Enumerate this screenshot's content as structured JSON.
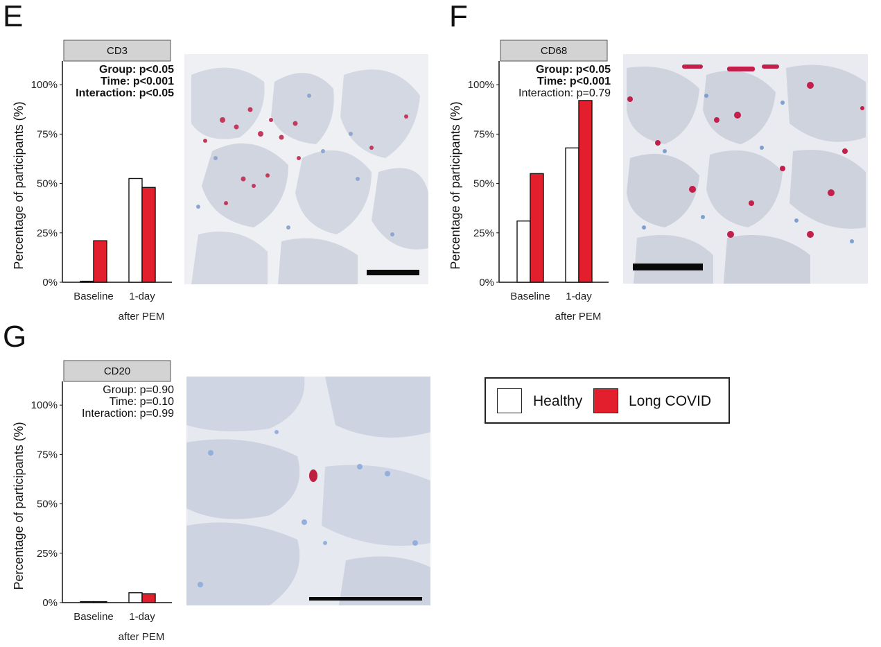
{
  "panels": {
    "E": {
      "letter": "E"
    },
    "F": {
      "letter": "F"
    },
    "G": {
      "letter": "G"
    }
  },
  "colors": {
    "healthy_fill": "#ffffff",
    "long_covid_fill": "#e31e2d",
    "strip_fill": "#d3d3d3",
    "bar_outline": "#111111"
  },
  "legend": {
    "items": [
      {
        "label": "Healthy",
        "color": "#ffffff"
      },
      {
        "label": "Long COVID",
        "color": "#e31e2d"
      }
    ]
  },
  "chart_data": [
    {
      "panel": "E",
      "type": "bar",
      "strip": "CD3",
      "categories": [
        "Baseline",
        "1-day"
      ],
      "category_sublabel": "after PEM",
      "ylabel": "Percentage of participants (%)",
      "ylim": [
        0,
        112
      ],
      "yticks": [
        "0%",
        "25%",
        "50%",
        "75%",
        "100%"
      ],
      "grid": false,
      "series": [
        {
          "name": "Healthy",
          "values": [
            0.5,
            52.5
          ]
        },
        {
          "name": "Long COVID",
          "values": [
            21,
            48
          ]
        }
      ],
      "stats": [
        {
          "text": "Group: p<0.05",
          "bold": true
        },
        {
          "text": "Time: p<0.001",
          "bold": true
        },
        {
          "text": "Interaction: p<0.05",
          "bold": true
        }
      ]
    },
    {
      "panel": "F",
      "type": "bar",
      "strip": "CD68",
      "categories": [
        "Baseline",
        "1-day"
      ],
      "category_sublabel": "after PEM",
      "ylabel": "Percentage of participants (%)",
      "ylim": [
        0,
        112
      ],
      "yticks": [
        "0%",
        "25%",
        "50%",
        "75%",
        "100%"
      ],
      "grid": false,
      "series": [
        {
          "name": "Healthy",
          "values": [
            31,
            68
          ]
        },
        {
          "name": "Long COVID",
          "values": [
            55,
            92
          ]
        }
      ],
      "stats": [
        {
          "text": "Group: p<0.05",
          "bold": true
        },
        {
          "text": "Time: p<0.001",
          "bold": true
        },
        {
          "text": "Interaction: p=0.79",
          "bold": false
        }
      ]
    },
    {
      "panel": "G",
      "type": "bar",
      "strip": "CD20",
      "categories": [
        "Baseline",
        "1-day"
      ],
      "category_sublabel": "after PEM",
      "ylabel": "Percentage of participants (%)",
      "ylim": [
        0,
        112
      ],
      "yticks": [
        "0%",
        "25%",
        "50%",
        "75%",
        "100%"
      ],
      "grid": false,
      "series": [
        {
          "name": "Healthy",
          "values": [
            0.5,
            5
          ]
        },
        {
          "name": "Long COVID",
          "values": [
            0.5,
            4.5
          ]
        }
      ],
      "stats": [
        {
          "text": "Group: p=0.90",
          "bold": false
        },
        {
          "text": "Time: p=0.10",
          "bold": false
        },
        {
          "text": "Interaction: p=0.99",
          "bold": false
        }
      ]
    }
  ]
}
